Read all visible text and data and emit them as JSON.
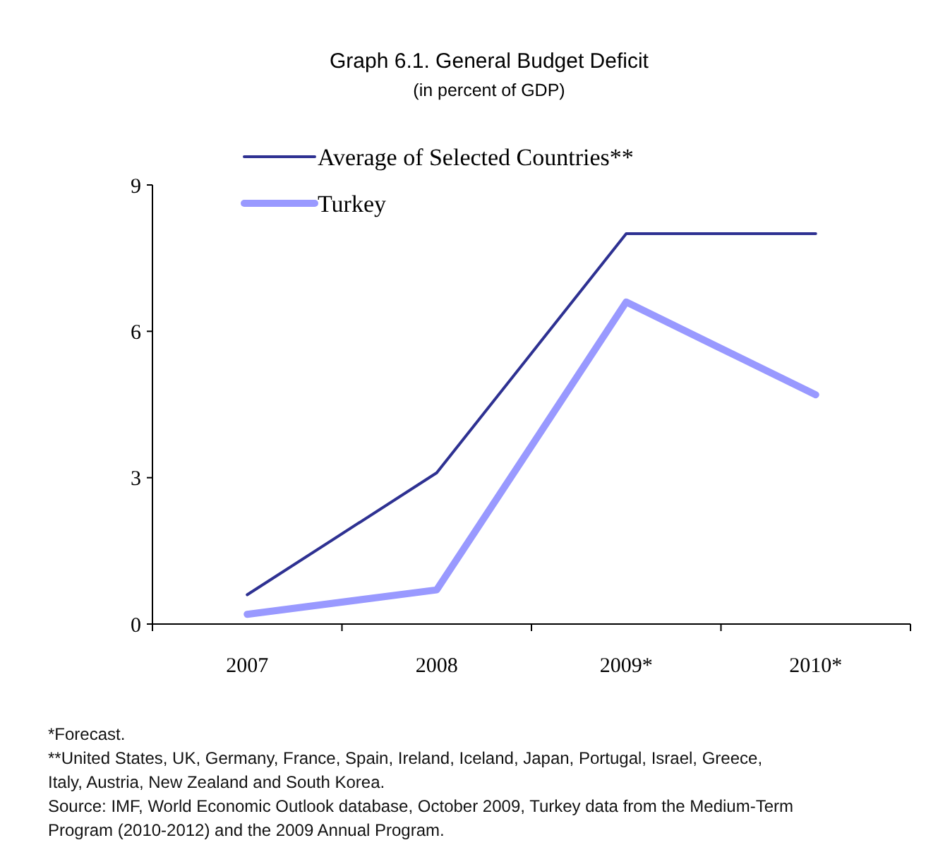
{
  "chart_data": {
    "type": "line",
    "title": "Graph 6.1. General Budget Deficit",
    "subtitle": "(in percent of GDP)",
    "categories": [
      "2007",
      "2008",
      "2009*",
      "2010*"
    ],
    "series": [
      {
        "name": "Average of Selected Countries**",
        "color": "#2e3192",
        "values": [
          0.6,
          3.1,
          8.0,
          8.0
        ]
      },
      {
        "name": "Turkey",
        "color": "#9999ff",
        "values": [
          0.2,
          0.7,
          6.6,
          4.7
        ]
      }
    ],
    "ylim": [
      0,
      9
    ],
    "yticks": [
      0,
      3,
      6,
      9
    ],
    "grid": false,
    "legend": "top left",
    "marker": "none",
    "line_style": "solid",
    "annotations": [
      "*Forecast.",
      "**United States, UK, Germany, France, Spain, Ireland, Iceland, Japan, Portugal, Israel, Greece, Italy, Austria, New Zealand and South Korea.",
      "Source: IMF, World Economic Outlook database, October 2009, Turkey data from the Medium-Term Program (2010-2012) and the 2009 Annual Program."
    ]
  }
}
